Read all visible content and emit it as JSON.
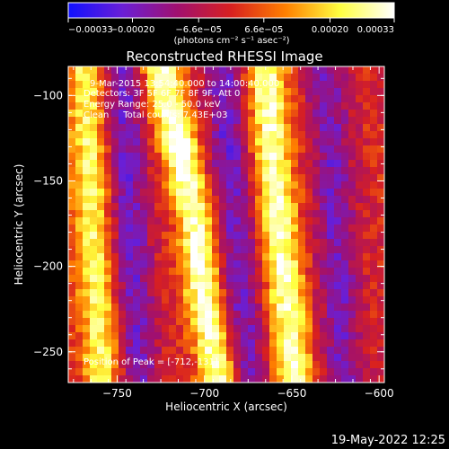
{
  "chart_data": {
    "type": "heatmap",
    "title": "Reconstructed RHESSI Image",
    "xlabel": "Heliocentric X (arcsec)",
    "ylabel": "Heliocentric Y (arcsec)",
    "xlim": [
      -778,
      -597
    ],
    "ylim": [
      -268,
      -83
    ],
    "xticks": [
      -750,
      -700,
      -650,
      -600
    ],
    "xtick_labels": [
      "−750",
      "−700",
      "−650",
      "−600"
    ],
    "yticks": [
      -100,
      -150,
      -200,
      -250
    ],
    "ytick_labels": [
      "−100",
      "−150",
      "−200",
      "−250"
    ],
    "colorbar": {
      "range": [
        -0.00033,
        0.00033
      ],
      "ticks": [
        -0.00033,
        -0.0002,
        -6.6e-05,
        6.6e-05,
        0.0002,
        0.00033
      ],
      "tick_labels": [
        "−0.00033",
        "−0.00020",
        "−6.6e−05",
        "6.6e−05",
        "0.00020",
        "0.00033"
      ],
      "units_label": "(photons cm⁻² s⁻¹ asec⁻²)",
      "colors": [
        "#1010ff",
        "#6a1fd6",
        "#a01070",
        "#d82020",
        "#ff8000",
        "#ffff40",
        "#ffffff"
      ]
    },
    "annotations": [
      "9-Mar-2015 13:54:40.000 to 14:00:40.000",
      "Detectors: 3F 5F 6F 7F 8F 9F, Att 0",
      "Energy Range: 25.0 - 50.0 keV",
      "Clean     Total counts: 7.43E+03",
      "Position of Peak = [-712,-131]"
    ],
    "peak": {
      "x": -712,
      "y": -131
    },
    "bands": [
      {
        "intensity": 0.75,
        "centers": [
          [
            -83,
            -768
          ],
          [
            -150,
            -765
          ],
          [
            -200,
            -762
          ],
          [
            -268,
            -758
          ]
        ]
      },
      {
        "intensity": 0.95,
        "centers": [
          [
            -83,
            -725
          ],
          [
            -130,
            -715
          ],
          [
            -170,
            -705
          ],
          [
            -220,
            -700
          ],
          [
            -268,
            -690
          ]
        ]
      },
      {
        "intensity": 0.9,
        "centers": [
          [
            -83,
            -665
          ],
          [
            -150,
            -660
          ],
          [
            -200,
            -655
          ],
          [
            -268,
            -648
          ]
        ]
      },
      {
        "intensity": -0.6,
        "centers": [
          [
            -83,
            -748
          ],
          [
            -268,
            -738
          ]
        ]
      },
      {
        "intensity": -0.6,
        "centers": [
          [
            -83,
            -690
          ],
          [
            -268,
            -675
          ]
        ]
      },
      {
        "intensity": -0.55,
        "centers": [
          [
            -83,
            -630
          ],
          [
            -268,
            -620
          ]
        ]
      }
    ]
  },
  "footer": {
    "timestamp": "19-May-2022 12:25"
  }
}
